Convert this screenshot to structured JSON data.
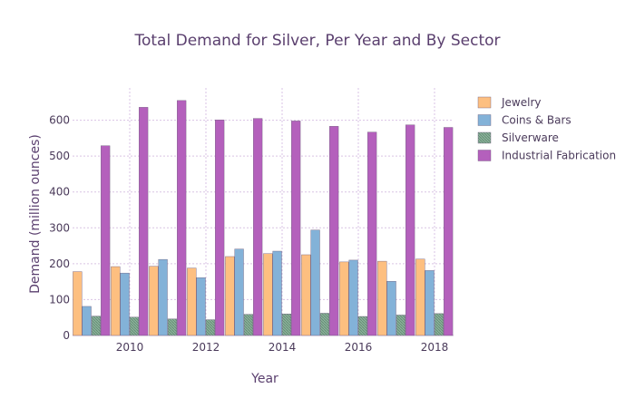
{
  "chart_data": {
    "type": "bar",
    "title": "Total Demand for Silver, Per Year and By Sector",
    "xlabel": "Year",
    "ylabel": "Demand (million ounces)",
    "categories": [
      2009,
      2010,
      2011,
      2012,
      2013,
      2014,
      2015,
      2016,
      2017,
      2018
    ],
    "x_tick_labels": [
      "2010",
      "2012",
      "2014",
      "2016",
      "2018"
    ],
    "y_ticks": [
      0,
      100,
      200,
      300,
      400,
      500,
      600
    ],
    "ylim": [
      0,
      690
    ],
    "grid": true,
    "legend_position": "right",
    "series": [
      {
        "name": "Jewelry",
        "color": "#fdbf80",
        "pattern": "solid",
        "values": [
          178,
          192,
          193,
          188,
          220,
          228,
          225,
          205,
          207,
          213
        ]
      },
      {
        "name": "Coins & Bars",
        "color": "#83b2d8",
        "pattern": "solid",
        "values": [
          81,
          174,
          212,
          161,
          241,
          235,
          294,
          210,
          151,
          181
        ]
      },
      {
        "name": "Silverware",
        "color": "#8bb09a",
        "pattern": "hatched",
        "values": [
          54,
          51,
          46,
          44,
          59,
          60,
          62,
          53,
          57,
          61
        ]
      },
      {
        "name": "Industrial Fabrication",
        "color": "#b460bc",
        "pattern": "solid",
        "values": [
          529,
          636,
          655,
          601,
          605,
          598,
          583,
          567,
          587,
          580
        ]
      }
    ]
  }
}
